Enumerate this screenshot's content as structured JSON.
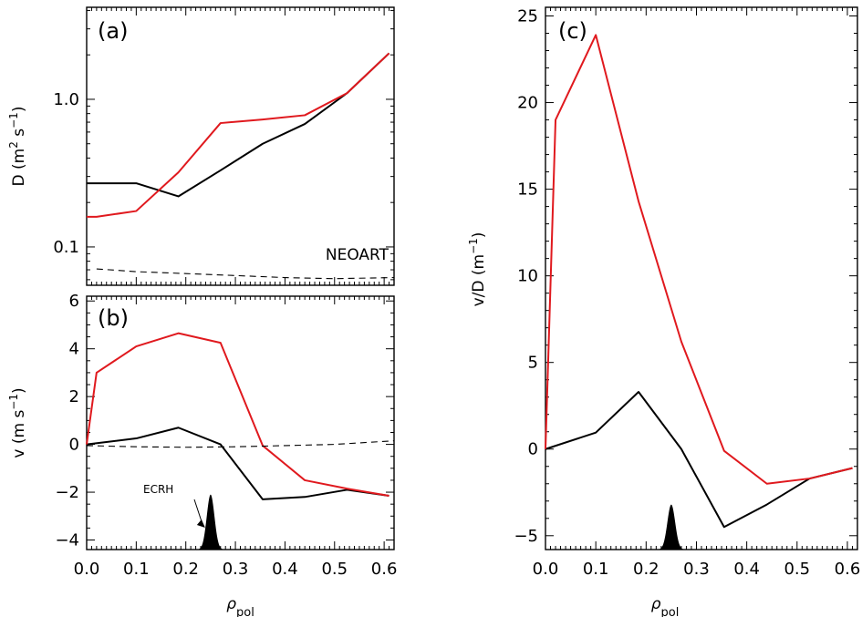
{
  "chart_data": [
    {
      "panel": "(a)",
      "type": "line",
      "ylabel": "D",
      "yunit_base": "(m",
      "yunit_sup1": "2",
      "yunit_mid": " s",
      "yunit_sup2": "−1",
      "yunit_end": ")",
      "yscale": "log",
      "ylim": [
        0.055,
        4.2
      ],
      "xlim": [
        0,
        0.62
      ],
      "yticks": [
        {
          "v": 0.1,
          "label": "0.1"
        },
        {
          "v": 1.0,
          "label": "1.0"
        }
      ],
      "annotation": "NEOART",
      "series": [
        {
          "color": "#000000",
          "style": "solid",
          "x": [
            0.0,
            0.1,
            0.185,
            0.27,
            0.355,
            0.44,
            0.525,
            0.61
          ],
          "y": [
            0.27,
            0.27,
            0.22,
            0.33,
            0.5,
            0.68,
            1.1,
            2.05
          ]
        },
        {
          "color": "#e0191e",
          "style": "solid",
          "x": [
            0.0,
            0.02,
            0.1,
            0.185,
            0.27,
            0.355,
            0.44,
            0.525,
            0.61
          ],
          "y": [
            0.16,
            0.16,
            0.175,
            0.32,
            0.69,
            0.73,
            0.78,
            1.1,
            2.05
          ]
        },
        {
          "color": "#000000",
          "style": "dashed",
          "x": [
            0.02,
            0.1,
            0.2,
            0.3,
            0.4,
            0.5,
            0.62
          ],
          "y": [
            0.071,
            0.068,
            0.066,
            0.064,
            0.062,
            0.061,
            0.062
          ]
        }
      ]
    },
    {
      "panel": "(b)",
      "type": "line",
      "ylabel": "v",
      "yunit_base": "(m s",
      "yunit_sup2": "−1",
      "yunit_end": ")",
      "ylim": [
        -4.4,
        6.2
      ],
      "xlim": [
        0,
        0.62
      ],
      "xlabel": "ρ",
      "xlabel_sub": "pol",
      "xticks": [
        {
          "v": 0.0,
          "label": "0.0"
        },
        {
          "v": 0.1,
          "label": "0.1"
        },
        {
          "v": 0.2,
          "label": "0.2"
        },
        {
          "v": 0.3,
          "label": "0.3"
        },
        {
          "v": 0.4,
          "label": "0.4"
        },
        {
          "v": 0.5,
          "label": "0.5"
        },
        {
          "v": 0.6,
          "label": "0.6"
        }
      ],
      "yticks": [
        {
          "v": -4,
          "label": "−4"
        },
        {
          "v": -2,
          "label": "−2"
        },
        {
          "v": 0,
          "label": "0"
        },
        {
          "v": 2,
          "label": "2"
        },
        {
          "v": 4,
          "label": "4"
        },
        {
          "v": 6,
          "label": "6"
        }
      ],
      "annotation": "ECRH",
      "series": [
        {
          "color": "#000000",
          "style": "solid",
          "x": [
            0.0,
            0.1,
            0.185,
            0.27,
            0.355,
            0.44,
            0.525,
            0.61
          ],
          "y": [
            0.0,
            0.25,
            0.7,
            0.0,
            -2.3,
            -2.2,
            -1.9,
            -2.15
          ]
        },
        {
          "color": "#e0191e",
          "style": "solid",
          "x": [
            0.0,
            0.02,
            0.1,
            0.185,
            0.27,
            0.355,
            0.44,
            0.525,
            0.61
          ],
          "y": [
            0.0,
            3.0,
            4.1,
            4.65,
            4.25,
            -0.05,
            -1.5,
            -1.85,
            -2.15
          ]
        },
        {
          "color": "#000000",
          "style": "dashed",
          "x": [
            0.0,
            0.1,
            0.2,
            0.3,
            0.4,
            0.5,
            0.62
          ],
          "y": [
            -0.05,
            -0.1,
            -0.12,
            -0.1,
            -0.05,
            0.0,
            0.15
          ]
        }
      ],
      "ecrh_peak": {
        "x": 0.25,
        "height": 2.3,
        "width": 0.01
      }
    },
    {
      "panel": "(c)",
      "type": "line",
      "ylabel": "v/D",
      "yunit_base": "(m",
      "yunit_sup2": "−1",
      "yunit_end": ")",
      "ylim": [
        -5.8,
        25.5
      ],
      "xlim": [
        0,
        0.62
      ],
      "xlabel": "ρ",
      "xlabel_sub": "pol",
      "xticks": [
        {
          "v": 0.0,
          "label": "0.0"
        },
        {
          "v": 0.1,
          "label": "0.1"
        },
        {
          "v": 0.2,
          "label": "0.2"
        },
        {
          "v": 0.3,
          "label": "0.3"
        },
        {
          "v": 0.4,
          "label": "0.4"
        },
        {
          "v": 0.5,
          "label": "0.5"
        },
        {
          "v": 0.6,
          "label": "0.6"
        }
      ],
      "yticks": [
        {
          "v": -5,
          "label": "−5"
        },
        {
          "v": 0,
          "label": "0"
        },
        {
          "v": 5,
          "label": "5"
        },
        {
          "v": 10,
          "label": "10"
        },
        {
          "v": 15,
          "label": "15"
        },
        {
          "v": 20,
          "label": "20"
        },
        {
          "v": 25,
          "label": "25"
        }
      ],
      "series": [
        {
          "color": "#000000",
          "style": "solid",
          "x": [
            0.0,
            0.1,
            0.185,
            0.27,
            0.355,
            0.44,
            0.525,
            0.61
          ],
          "y": [
            0.0,
            0.95,
            3.3,
            0.0,
            -4.5,
            -3.2,
            -1.7,
            -1.1
          ]
        },
        {
          "color": "#e0191e",
          "style": "solid",
          "x": [
            0.0,
            0.02,
            0.1,
            0.185,
            0.27,
            0.355,
            0.44,
            0.525,
            0.61
          ],
          "y": [
            0.0,
            19.0,
            23.9,
            14.3,
            6.2,
            -0.1,
            -2.0,
            -1.7,
            -1.1
          ]
        }
      ],
      "ecrh_peak": {
        "x": 0.25,
        "height": 2.6,
        "width": 0.01
      }
    }
  ]
}
